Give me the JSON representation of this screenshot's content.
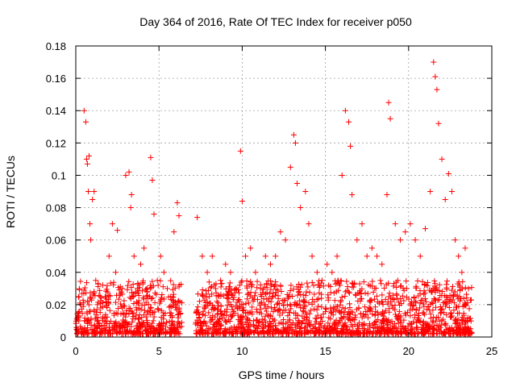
{
  "chart_data": {
    "type": "scatter",
    "title": "Day 364 of 2016, Rate Of TEC Index for receiver p050",
    "xlabel": "GPS time / hours",
    "ylabel": "ROTI / TECUs",
    "xlim": [
      0,
      25
    ],
    "ylim": [
      0,
      0.18
    ],
    "x_ticks": [
      0,
      5,
      10,
      15,
      20,
      25
    ],
    "y_ticks": [
      0,
      0.02,
      0.04,
      0.06,
      0.08,
      0.1,
      0.12,
      0.14,
      0.16,
      0.18
    ],
    "x_tick_labels": [
      "0",
      "5",
      "10",
      "15",
      "20",
      "25"
    ],
    "y_tick_labels": [
      "0",
      "0.02",
      "0.04",
      "0.06",
      "0.08",
      "0.1",
      "0.12",
      "0.14",
      "0.16",
      "0.18"
    ],
    "grid": true,
    "marker": "+",
    "marker_color": "#ff0000",
    "data_gap_hours": [
      6.4,
      7.2
    ],
    "series": [
      {
        "name": "ROTI",
        "x": [
          0.1,
          0.3,
          0.5,
          0.6,
          0.65,
          0.7,
          0.75,
          0.8,
          0.85,
          0.9,
          1.0,
          1.1,
          1.2,
          1.3,
          1.5,
          1.8,
          2.0,
          2.2,
          2.4,
          2.5,
          2.8,
          3.0,
          3.2,
          3.3,
          3.35,
          3.5,
          3.7,
          3.9,
          4.1,
          4.3,
          4.5,
          4.6,
          4.7,
          4.9,
          5.1,
          5.3,
          5.5,
          5.7,
          5.9,
          6.1,
          6.2,
          7.3,
          7.6,
          7.9,
          8.2,
          8.4,
          8.7,
          9.0,
          9.3,
          9.6,
          9.9,
          10.0,
          10.2,
          10.5,
          10.8,
          11.1,
          11.4,
          11.7,
          12.0,
          12.3,
          12.6,
          12.9,
          13.1,
          13.2,
          13.3,
          13.5,
          13.8,
          14.0,
          14.2,
          14.5,
          14.8,
          15.1,
          15.4,
          15.7,
          16.0,
          16.2,
          16.4,
          16.5,
          16.6,
          16.9,
          17.2,
          17.5,
          17.8,
          18.1,
          18.4,
          18.7,
          18.8,
          18.9,
          19.2,
          19.5,
          19.8,
          20.1,
          20.4,
          20.7,
          21.0,
          21.3,
          21.5,
          21.6,
          21.7,
          21.8,
          22.0,
          22.2,
          22.4,
          22.6,
          22.8,
          23.0,
          23.2,
          23.4,
          23.6
        ],
        "y": [
          0.012,
          0.02,
          0.14,
          0.133,
          0.11,
          0.107,
          0.09,
          0.112,
          0.07,
          0.06,
          0.085,
          0.09,
          0.035,
          0.02,
          0.018,
          0.025,
          0.05,
          0.07,
          0.04,
          0.066,
          0.03,
          0.1,
          0.102,
          0.08,
          0.088,
          0.05,
          0.03,
          0.045,
          0.055,
          0.028,
          0.111,
          0.097,
          0.076,
          0.035,
          0.05,
          0.04,
          0.03,
          0.025,
          0.065,
          0.083,
          0.075,
          0.074,
          0.05,
          0.04,
          0.05,
          0.03,
          0.035,
          0.045,
          0.04,
          0.03,
          0.115,
          0.084,
          0.05,
          0.055,
          0.04,
          0.03,
          0.05,
          0.045,
          0.05,
          0.065,
          0.06,
          0.105,
          0.125,
          0.12,
          0.095,
          0.08,
          0.09,
          0.07,
          0.05,
          0.04,
          0.035,
          0.045,
          0.04,
          0.05,
          0.1,
          0.14,
          0.133,
          0.118,
          0.088,
          0.06,
          0.07,
          0.05,
          0.055,
          0.05,
          0.045,
          0.088,
          0.145,
          0.135,
          0.07,
          0.06,
          0.065,
          0.07,
          0.06,
          0.05,
          0.067,
          0.09,
          0.17,
          0.161,
          0.153,
          0.132,
          0.11,
          0.085,
          0.101,
          0.09,
          0.06,
          0.05,
          0.04,
          0.055,
          0.03
        ]
      }
    ],
    "background_band": {
      "description": "dense cluster of low ROTI values along the bottom of the plot",
      "y_range": [
        0.002,
        0.035
      ],
      "x_ranges": [
        [
          0,
          6.4
        ],
        [
          7.2,
          23.8
        ]
      ]
    }
  }
}
